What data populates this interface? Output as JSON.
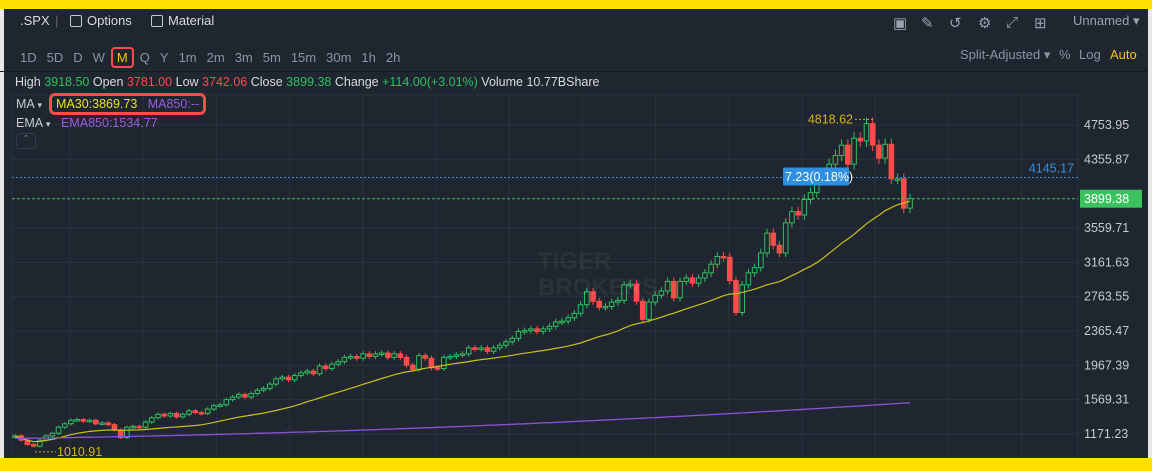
{
  "header": {
    "symbol": ".SPX",
    "options_label": "Options",
    "material_label": "Material",
    "layout_name": "Unnamed",
    "tools": [
      "chart-icon",
      "draw-icon",
      "refresh-icon",
      "gear-icon",
      "fullscreen-icon",
      "grid-layout-icon"
    ]
  },
  "periods": [
    "1D",
    "5D",
    "D",
    "W",
    "M",
    "Q",
    "Y",
    "1m",
    "2m",
    "3m",
    "5m",
    "15m",
    "30m",
    "1h",
    "2h"
  ],
  "selected_period": "M",
  "right_controls": {
    "adjust": "Split-Adjusted",
    "percent": "%",
    "log": "Log",
    "auto": "Auto"
  },
  "quote": {
    "high_label": "High",
    "high": "3918.50",
    "open_label": "Open",
    "open": "3781.00",
    "low_label": "Low",
    "low": "3742.06",
    "close_label": "Close",
    "close": "3899.38",
    "change_label": "Change",
    "change": "+114.00(+3.01%)",
    "volume_label": "Volume",
    "volume": "10.77BShare"
  },
  "indicators": {
    "ma_label": "MA",
    "ma30": "MA30:3869.73",
    "ma850": "MA850:--",
    "ema_label": "EMA",
    "ema850": "EMA850:1534.77"
  },
  "watermark": "TIGER BROKERS",
  "colors": {
    "up": "#2fbf5f",
    "down": "#ff4b4b",
    "ma30": "#c8c21a",
    "ema850": "#8a52d6",
    "accent": "#f5c518",
    "last_price": "#3cc15f",
    "ref_line": "#2f8fe0"
  },
  "chart_data": {
    "type": "candlestick",
    "interval": "monthly",
    "y_ticks": [
      "4753.95",
      "4355.87",
      "3559.71",
      "3161.63",
      "2763.55",
      "2365.47",
      "1967.39",
      "1569.31",
      "1171.23"
    ],
    "last_price": "3899.38",
    "reference_price": "4145.17",
    "tooltip": "7.23(0.18%)",
    "max_label": "4818.62",
    "min_label": "1010.91",
    "ema850_last": 1534.77,
    "closes": [
      1150,
      1100,
      1050,
      1030,
      1100,
      1150,
      1180,
      1250,
      1290,
      1330,
      1340,
      1320,
      1330,
      1290,
      1300,
      1280,
      1220,
      1130,
      1250,
      1260,
      1250,
      1310,
      1360,
      1400,
      1380,
      1410,
      1370,
      1400,
      1440,
      1420,
      1410,
      1460,
      1500,
      1510,
      1570,
      1600,
      1630,
      1600,
      1640,
      1680,
      1700,
      1750,
      1810,
      1830,
      1800,
      1850,
      1880,
      1900,
      1870,
      1960,
      1930,
      1980,
      2010,
      2060,
      2070,
      2050,
      2100,
      2070,
      2100,
      2110,
      2060,
      2100,
      2060,
      1970,
      1920,
      2080,
      2050,
      1940,
      1930,
      2060,
      2070,
      2090,
      2100,
      2170,
      2160,
      2170,
      2130,
      2170,
      2200,
      2240,
      2280,
      2360,
      2370,
      2390,
      2360,
      2390,
      2420,
      2470,
      2480,
      2520,
      2570,
      2670,
      2820,
      2710,
      2640,
      2650,
      2700,
      2720,
      2900,
      2910,
      2710,
      2500,
      2700,
      2780,
      2830,
      2940,
      2750,
      2940,
      2980,
      2920,
      2980,
      3040,
      3140,
      3230,
      3220,
      2950,
      2580,
      2900,
      3040,
      3100,
      3270,
      3500,
      3360,
      3270,
      3620,
      3750,
      3710,
      3890,
      3970,
      4180,
      4200,
      4300,
      4400,
      4520,
      4300,
      4600,
      4570,
      4770,
      4520,
      4370,
      4530,
      4130,
      4130,
      3790,
      3900
    ]
  }
}
